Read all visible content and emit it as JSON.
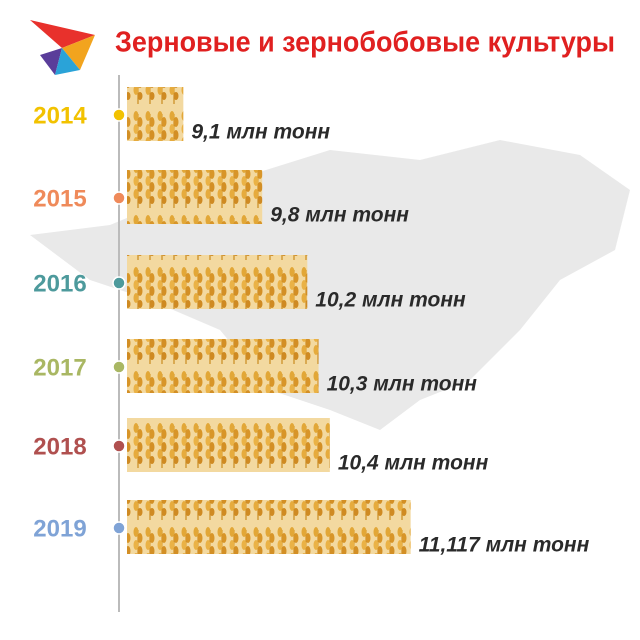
{
  "chart_data": {
    "type": "bar",
    "orientation": "horizontal",
    "title": "Зерновые и зернобобовые культуры",
    "categories": [
      "2014",
      "2015",
      "2016",
      "2017",
      "2018",
      "2019"
    ],
    "category_colors": [
      "#f2c200",
      "#ef8a5a",
      "#4d9a9c",
      "#a9b763",
      "#b0504f",
      "#7fa3d6"
    ],
    "values": [
      9.1,
      9.8,
      10.2,
      10.3,
      10.4,
      11.117
    ],
    "value_labels": [
      "9,1 млн тонн",
      "9,8 млн тонн",
      "10,2 млн тонн",
      "10,3 млн тонн",
      "10,4 млн тонн",
      "11,117 млн тонн"
    ],
    "color": "#e0a530",
    "xlim": [
      8.6,
      11.2
    ]
  }
}
